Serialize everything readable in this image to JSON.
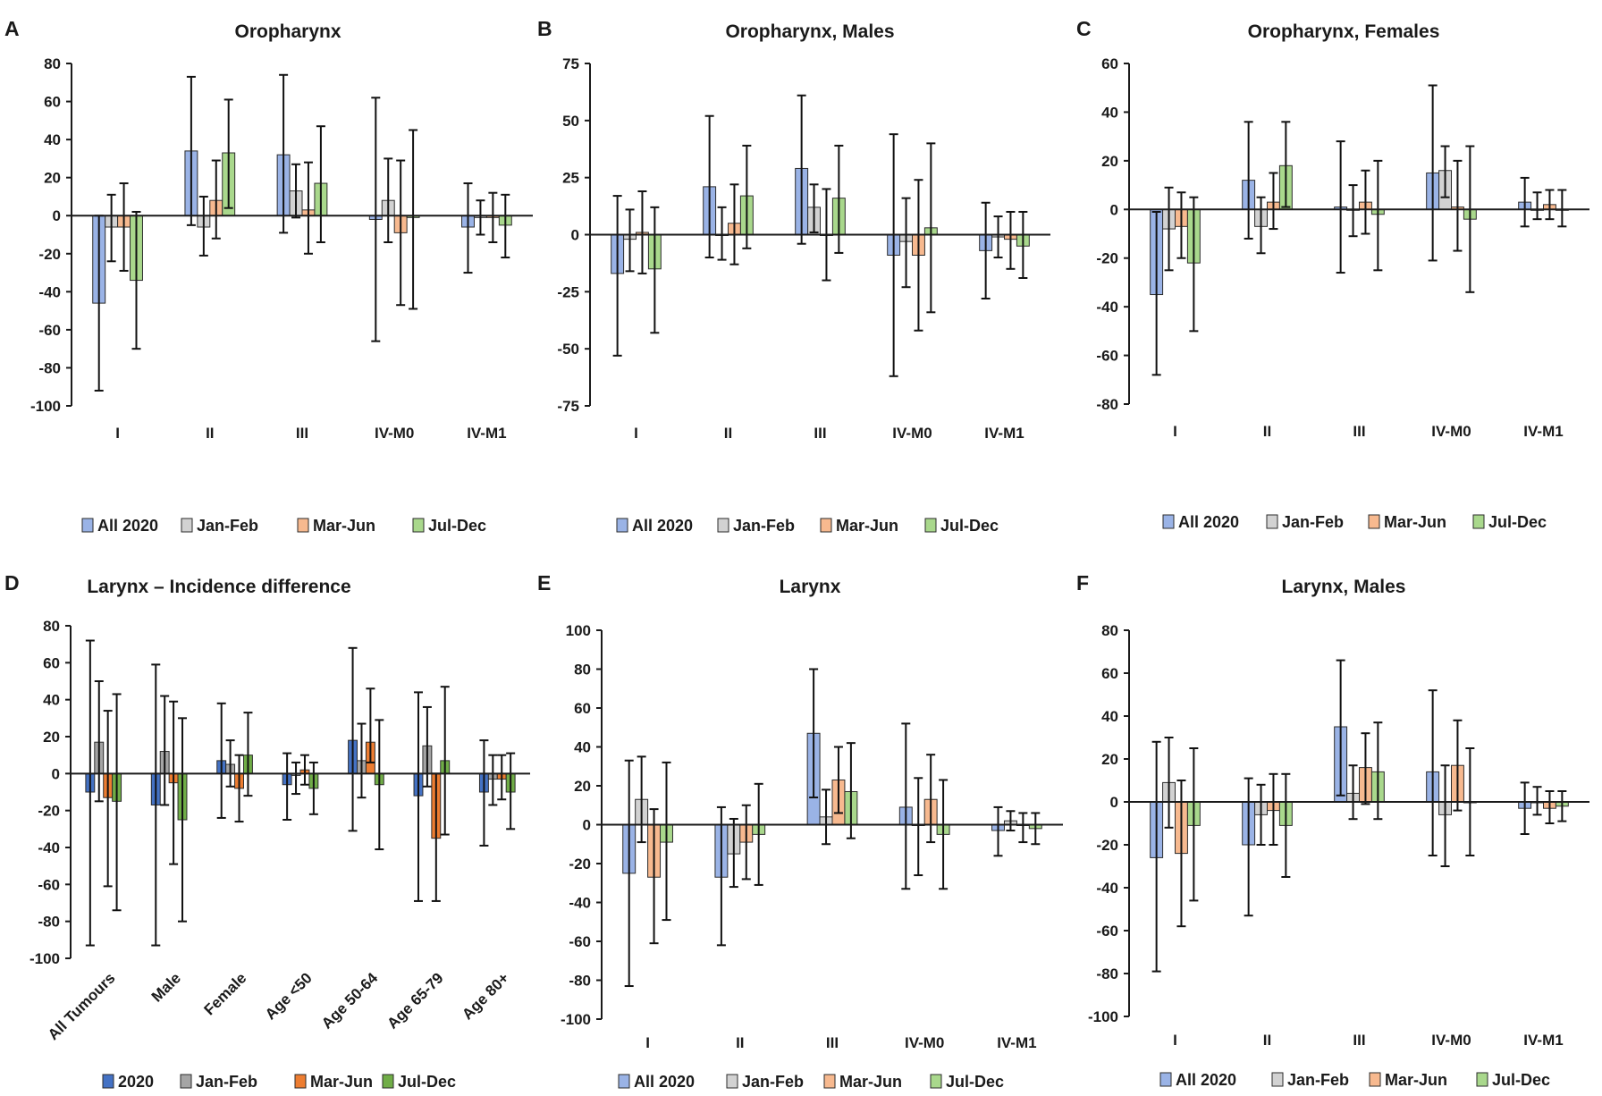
{
  "colors": {
    "light": [
      "#9ab3e6",
      "#d2d2d2",
      "#f7b98f",
      "#a9d88c"
    ],
    "dark": [
      "#4472c4",
      "#a5a5a5",
      "#ed7d31",
      "#70ad47"
    ]
  },
  "chart_data": [
    {
      "letter": "A",
      "title": "Oropharynx",
      "type": "bar",
      "palette": "light",
      "categories": [
        "I",
        "II",
        "III",
        "IV-M0",
        "IV-M1"
      ],
      "ylim": [
        -100,
        80
      ],
      "yticks": [
        80,
        60,
        40,
        20,
        0,
        -20,
        -40,
        -60,
        -80,
        -100
      ],
      "ytick_labels": [
        "80",
        "60",
        "40",
        "20",
        "0",
        "-20",
        "-40",
        "-60",
        "-80",
        "-100"
      ],
      "series": [
        {
          "name": "All 2020",
          "values": [
            -46,
            34,
            32,
            -2,
            -6
          ],
          "err_low": [
            -92,
            -5,
            -9,
            -66,
            -30
          ],
          "err_high": [
            0,
            73,
            74,
            62,
            17
          ]
        },
        {
          "name": "Jan-Feb",
          "values": [
            -6,
            -6,
            13,
            8,
            -1
          ],
          "err_low": [
            -24,
            -21,
            -1,
            -14,
            -10
          ],
          "err_high": [
            11,
            10,
            27,
            30,
            8
          ]
        },
        {
          "name": "Mar-Jun",
          "values": [
            -6,
            8,
            3,
            -9,
            -1
          ],
          "err_low": [
            -29,
            -12,
            -20,
            -47,
            -14
          ],
          "err_high": [
            17,
            29,
            28,
            29,
            12
          ]
        },
        {
          "name": "Jul-Dec",
          "values": [
            -34,
            33,
            17,
            -1,
            -5
          ],
          "err_low": [
            -70,
            4,
            -14,
            -49,
            -22
          ],
          "err_high": [
            2,
            61,
            47,
            45,
            11
          ]
        }
      ]
    },
    {
      "letter": "B",
      "title": "Oropharynx, Males",
      "type": "bar",
      "palette": "light",
      "categories": [
        "I",
        "II",
        "III",
        "IV-M0",
        "IV-M1"
      ],
      "ylim": [
        -75,
        75
      ],
      "yticks": [
        75,
        50,
        25,
        0,
        -25,
        -50,
        -75
      ],
      "ytick_labels": [
        "75",
        "50",
        "25",
        "0",
        "-25",
        "-50",
        "-75"
      ],
      "series": [
        {
          "name": "All 2020",
          "values": [
            -17,
            21,
            29,
            -9,
            -7
          ],
          "err_low": [
            -53,
            -10,
            -4,
            -62,
            -28
          ],
          "err_high": [
            17,
            52,
            61,
            44,
            14
          ]
        },
        {
          "name": "Jan-Feb",
          "values": [
            -2,
            0,
            12,
            -3,
            -1
          ],
          "err_low": [
            -16,
            -11,
            1,
            -23,
            -10
          ],
          "err_high": [
            11,
            12,
            22,
            16,
            8
          ]
        },
        {
          "name": "Mar-Jun",
          "values": [
            1,
            5,
            0,
            -9,
            -2
          ],
          "err_low": [
            -17,
            -13,
            -20,
            -42,
            -15
          ],
          "err_high": [
            19,
            22,
            20,
            24,
            10
          ]
        },
        {
          "name": "Jul-Dec",
          "values": [
            -15,
            17,
            16,
            3,
            -5
          ],
          "err_low": [
            -43,
            -6,
            -8,
            -34,
            -19
          ],
          "err_high": [
            12,
            39,
            39,
            40,
            10
          ]
        }
      ]
    },
    {
      "letter": "C",
      "title": "Oropharynx, Females",
      "type": "bar",
      "palette": "light",
      "categories": [
        "I",
        "II",
        "III",
        "IV-M0",
        "IV-M1"
      ],
      "ylim": [
        -80,
        60
      ],
      "yticks": [
        60,
        40,
        20,
        0,
        -20,
        -40,
        -60,
        -80
      ],
      "ytick_labels": [
        "60",
        "40",
        "20",
        "0",
        "-20",
        "-40",
        "-60",
        "-80"
      ],
      "series": [
        {
          "name": "All 2020",
          "values": [
            -35,
            12,
            1,
            15,
            3
          ],
          "err_low": [
            -68,
            -12,
            -26,
            -21,
            -7
          ],
          "err_high": [
            -1,
            36,
            28,
            51,
            13
          ]
        },
        {
          "name": "Jan-Feb",
          "values": [
            -8,
            -7,
            0,
            16,
            0
          ],
          "err_low": [
            -25,
            -18,
            -11,
            5,
            -4
          ],
          "err_high": [
            9,
            5,
            10,
            26,
            7
          ]
        },
        {
          "name": "Mar-Jun",
          "values": [
            -7,
            3,
            3,
            1,
            2
          ],
          "err_low": [
            -20,
            -8,
            -10,
            -17,
            -4
          ],
          "err_high": [
            7,
            15,
            16,
            20,
            8
          ]
        },
        {
          "name": "Jul-Dec",
          "values": [
            -22,
            18,
            -2,
            -4,
            0
          ],
          "err_low": [
            -50,
            1,
            -25,
            -34,
            -7
          ],
          "err_high": [
            5,
            36,
            20,
            26,
            8
          ]
        }
      ]
    },
    {
      "letter": "D",
      "title": "Larynx – Incidence difference",
      "type": "bar",
      "palette": "dark",
      "rotate_labels": true,
      "categories": [
        "All Tumours",
        "Male",
        "Female",
        "Age <50",
        "Age 50-64",
        "Age 65-79",
        "Age 80+"
      ],
      "ylim": [
        -100,
        80
      ],
      "yticks": [
        80,
        60,
        40,
        20,
        0,
        -20,
        -40,
        -60,
        -80,
        -100
      ],
      "ytick_labels": [
        "80",
        "60",
        "40",
        "20",
        "0",
        "-20",
        "-40",
        "-60",
        "-80",
        "-100"
      ],
      "series": [
        {
          "name": "2020",
          "values": [
            -10,
            -17,
            7,
            -6,
            18,
            -12,
            -10
          ],
          "err_low": [
            -93,
            -93,
            -24,
            -25,
            -31,
            -69,
            -39
          ],
          "err_high": [
            72,
            59,
            38,
            11,
            68,
            44,
            18
          ]
        },
        {
          "name": "Jan-Feb",
          "values": [
            17,
            12,
            5,
            -1,
            7,
            15,
            -3
          ],
          "err_low": [
            -15,
            -17,
            -7,
            -11,
            -13,
            -7,
            -17
          ],
          "err_high": [
            50,
            42,
            18,
            6,
            27,
            36,
            10
          ]
        },
        {
          "name": "Mar-Jun",
          "values": [
            -13,
            -5,
            -8,
            2,
            17,
            -35,
            -3
          ],
          "err_low": [
            -61,
            -49,
            -26,
            -6,
            6,
            -69,
            -14
          ],
          "err_high": [
            34,
            39,
            10,
            10,
            46,
            0,
            10
          ]
        },
        {
          "name": "Jul-Dec",
          "values": [
            -15,
            -25,
            10,
            -8,
            -6,
            7,
            -10
          ],
          "err_low": [
            -74,
            -80,
            -12,
            -22,
            -41,
            -33,
            -30
          ],
          "err_high": [
            43,
            30,
            33,
            6,
            29,
            47,
            11
          ]
        }
      ]
    },
    {
      "letter": "E",
      "title": "Larynx",
      "type": "bar",
      "palette": "light",
      "categories": [
        "I",
        "II",
        "III",
        "IV-M0",
        "IV-M1"
      ],
      "ylim": [
        -100,
        100
      ],
      "yticks": [
        100,
        80,
        60,
        40,
        20,
        0,
        -20,
        -40,
        -60,
        -80,
        -100
      ],
      "ytick_labels": [
        "100",
        "80",
        "60",
        "40",
        "20",
        "0",
        "-20",
        "-40",
        "-60",
        "-80",
        "-100"
      ],
      "series": [
        {
          "name": "All 2020",
          "values": [
            -25,
            -27,
            47,
            9,
            -3
          ],
          "err_low": [
            -83,
            -62,
            14,
            -33,
            -16
          ],
          "err_high": [
            33,
            9,
            80,
            52,
            9
          ]
        },
        {
          "name": "Jan-Feb",
          "values": [
            13,
            -15,
            4,
            0,
            2
          ],
          "err_low": [
            -9,
            -32,
            -10,
            -26,
            -3
          ],
          "err_high": [
            35,
            3,
            18,
            24,
            7
          ]
        },
        {
          "name": "Mar-Jun",
          "values": [
            -27,
            -9,
            23,
            13,
            0
          ],
          "err_low": [
            -61,
            -28,
            6,
            -9,
            -9
          ],
          "err_high": [
            8,
            10,
            40,
            36,
            6
          ]
        },
        {
          "name": "Jul-Dec",
          "values": [
            -9,
            -5,
            17,
            -5,
            -2
          ],
          "err_low": [
            -49,
            -31,
            -7,
            -33,
            -10
          ],
          "err_high": [
            32,
            21,
            42,
            23,
            6
          ]
        }
      ]
    },
    {
      "letter": "F",
      "title": "Larynx, Males",
      "type": "bar",
      "palette": "light",
      "categories": [
        "I",
        "II",
        "III",
        "IV-M0",
        "IV-M1"
      ],
      "ylim": [
        -100,
        80
      ],
      "yticks": [
        80,
        60,
        40,
        20,
        0,
        -20,
        -40,
        -60,
        -80,
        -100
      ],
      "ytick_labels": [
        "80",
        "60",
        "40",
        "20",
        "0",
        "-20",
        "-40",
        "-60",
        "-80",
        "-100"
      ],
      "series": [
        {
          "name": "All 2020",
          "values": [
            -26,
            -20,
            35,
            14,
            -3
          ],
          "err_low": [
            -79,
            -53,
            3,
            -25,
            -15
          ],
          "err_high": [
            28,
            11,
            66,
            52,
            9
          ]
        },
        {
          "name": "Jan-Feb",
          "values": [
            9,
            -6,
            4,
            -6,
            0
          ],
          "err_low": [
            -12,
            -20,
            -8,
            -30,
            -6
          ],
          "err_high": [
            30,
            8,
            17,
            17,
            7
          ]
        },
        {
          "name": "Mar-Jun",
          "values": [
            -24,
            -4,
            16,
            17,
            -3
          ],
          "err_low": [
            -58,
            -20,
            -1,
            -4,
            -10
          ],
          "err_high": [
            10,
            13,
            32,
            38,
            5
          ]
        },
        {
          "name": "Jul-Dec",
          "values": [
            -11,
            -11,
            14,
            0,
            -2
          ],
          "err_low": [
            -46,
            -35,
            -8,
            -25,
            -9
          ],
          "err_high": [
            25,
            13,
            37,
            25,
            5
          ]
        }
      ]
    }
  ]
}
